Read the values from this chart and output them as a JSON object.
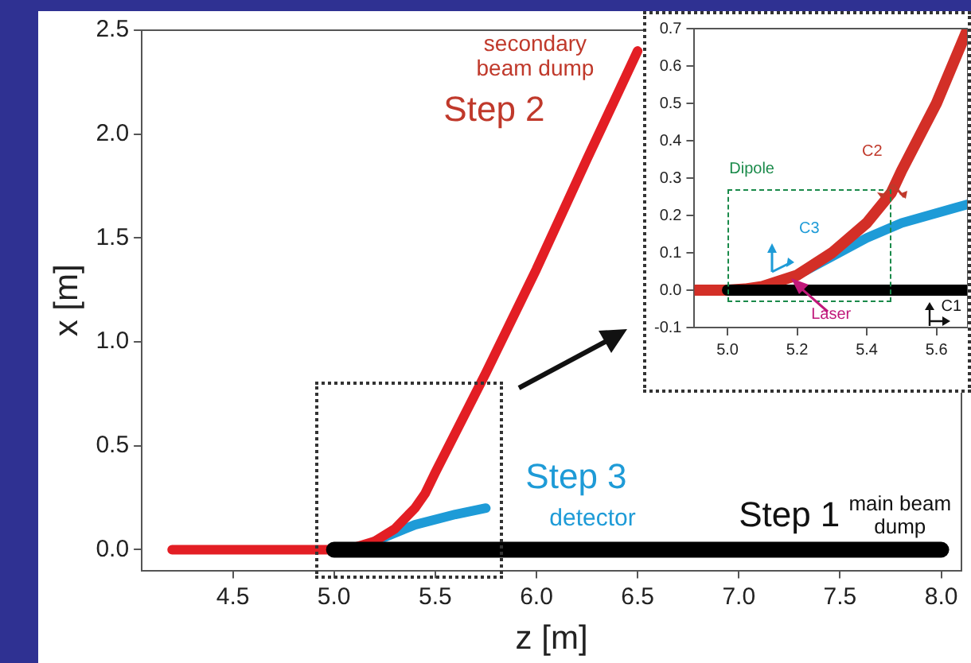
{
  "chart_data": [
    {
      "type": "line",
      "xlabel": "z [m]",
      "ylabel": "x [m]",
      "xlim": [
        4.05,
        8.1
      ],
      "ylim": [
        -0.1,
        2.5
      ],
      "xticks": [
        4.5,
        {
          "value": 5.0,
          "label": "5.0"
        },
        5.5,
        {
          "value": 6.0,
          "label": "6.0"
        },
        6.5,
        {
          "value": 7.0,
          "label": "7.0"
        },
        7.5,
        {
          "value": 8.0,
          "label": "8.0"
        }
      ],
      "yticks": [
        {
          "value": 0,
          "label": "0.0"
        },
        0.5,
        {
          "value": 1,
          "label": "1.0"
        },
        1.5,
        {
          "value": 2,
          "label": "2.0"
        },
        2.5
      ],
      "grid": false,
      "legend": false,
      "series": [
        {
          "color": "#000000",
          "x": [
            5.0,
            6.0,
            7.0,
            8.0
          ],
          "values": [
            0,
            0,
            0,
            0
          ]
        },
        {
          "color": "#e31e24",
          "x": [
            4.2,
            4.5,
            5.0,
            5.1,
            5.2,
            5.3,
            5.4,
            5.45,
            5.5,
            5.75,
            6.0,
            6.25,
            6.5
          ],
          "values": [
            0,
            0,
            0,
            0.01,
            0.04,
            0.1,
            0.2,
            0.27,
            0.37,
            0.85,
            1.35,
            1.88,
            2.4
          ]
        },
        {
          "color": "#1e9bd7",
          "x": [
            5.2,
            5.4,
            5.6,
            5.75
          ],
          "values": [
            0.04,
            0.12,
            0.17,
            0.2
          ]
        }
      ],
      "annotations": [
        "secondary beam dump",
        "Step 2",
        "Step 3",
        "detector",
        "Step 1",
        "main beam dump"
      ]
    },
    {
      "type": "line",
      "xlim": [
        4.905,
        5.69
      ],
      "ylim": [
        -0.1,
        0.7
      ],
      "xticks": [
        {
          "value": 5.0,
          "label": "5.0"
        },
        5.2,
        5.4,
        5.6
      ],
      "yticks": [
        -0.1,
        {
          "value": 0,
          "label": "0.0"
        },
        0.1,
        0.2,
        0.3,
        0.4,
        0.5,
        0.6,
        0.7
      ],
      "grid": false,
      "legend": false,
      "series": [
        {
          "color": "#000000",
          "x": [
            5.0,
            5.3,
            5.69
          ],
          "values": [
            0,
            0,
            0
          ]
        },
        {
          "color": "#d32f27",
          "x": [
            4.905,
            5.0,
            5.05,
            5.1,
            5.2,
            5.3,
            5.4,
            5.47,
            5.5,
            5.6,
            5.69
          ],
          "values": [
            0,
            0,
            0.003,
            0.01,
            0.04,
            0.1,
            0.18,
            0.26,
            0.32,
            0.5,
            0.7
          ]
        },
        {
          "color": "#1e9bd7",
          "x": [
            5.22,
            5.4,
            5.5,
            5.69
          ],
          "values": [
            0.05,
            0.14,
            0.18,
            0.23
          ]
        }
      ],
      "annotations": [
        "Dipole",
        "Laser",
        "C3",
        "C2",
        "C1"
      ]
    }
  ]
}
